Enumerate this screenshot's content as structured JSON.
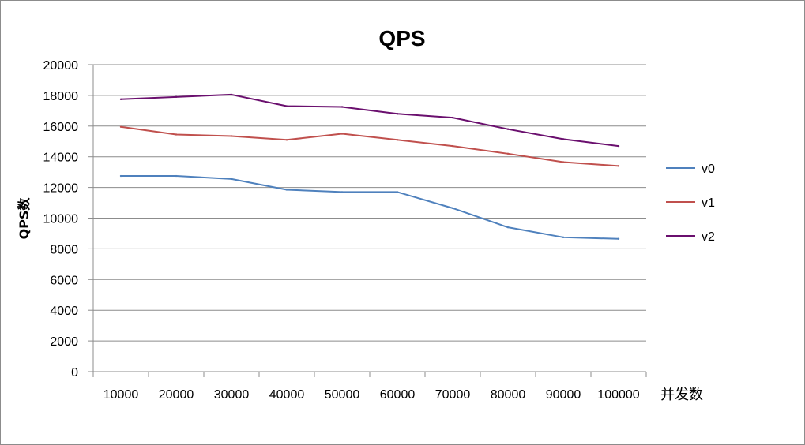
{
  "chart_data": {
    "type": "line",
    "title": "QPS",
    "xlabel": "并发数",
    "ylabel": "QPS数",
    "categories": [
      "10000",
      "20000",
      "30000",
      "40000",
      "50000",
      "60000",
      "70000",
      "80000",
      "90000",
      "100000"
    ],
    "ylim": [
      0,
      20000
    ],
    "yticks": [
      0,
      2000,
      4000,
      6000,
      8000,
      10000,
      12000,
      14000,
      16000,
      18000,
      20000
    ],
    "grid": true,
    "legend_position": "right",
    "series": [
      {
        "name": "v0",
        "color": "#4f81bd",
        "values": [
          12750,
          12750,
          12550,
          11850,
          11700,
          11700,
          10650,
          9400,
          8750,
          8650
        ]
      },
      {
        "name": "v1",
        "color": "#c0504d",
        "values": [
          15950,
          15450,
          15350,
          15100,
          15500,
          15100,
          14700,
          14200,
          13650,
          13400
        ]
      },
      {
        "name": "v2",
        "color": "#6a0f6e",
        "values": [
          17750,
          17900,
          18050,
          17300,
          17250,
          16800,
          16550,
          15800,
          15150,
          14700
        ]
      }
    ]
  }
}
